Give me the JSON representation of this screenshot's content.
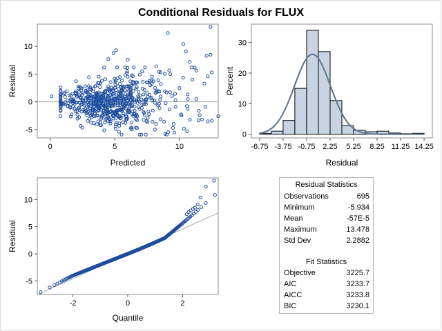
{
  "title": "Conditional Residuals for FLUX",
  "colors": {
    "marker": "#1f4e9e",
    "bar_fill": "#c9d3e3",
    "curve": "#657a94",
    "refline": "#a7a7a7"
  },
  "chart_data": [
    {
      "type": "scatter",
      "xlabel": "Predicted",
      "ylabel": "Residual",
      "xlim": [
        -1,
        13
      ],
      "ylim": [
        -6.5,
        14
      ],
      "xticks": [
        "0",
        "5",
        "10"
      ],
      "yticks": [
        "-5",
        "0",
        "5",
        "10"
      ],
      "reference_line_y": 0,
      "n_points_approx": 695,
      "notable_points": [
        {
          "x": 12.4,
          "y": 13.5
        },
        {
          "x": 9.1,
          "y": 12.4
        },
        {
          "x": 10.3,
          "y": 10.4
        },
        {
          "x": 10.5,
          "y": 9.1
        },
        {
          "x": 12.4,
          "y": 8.5
        },
        {
          "x": 12.1,
          "y": 8.3
        },
        {
          "x": 5.1,
          "y": 9.3
        },
        {
          "x": 4.9,
          "y": 8.8
        },
        {
          "x": 4.5,
          "y": 7.7
        },
        {
          "x": 6.0,
          "y": 7.6
        },
        {
          "x": 10.8,
          "y": 7.2
        },
        {
          "x": 12.5,
          "y": 5.3
        },
        {
          "x": 12.2,
          "y": 4.6
        },
        {
          "x": 8.2,
          "y": 6.4
        },
        {
          "x": 11.0,
          "y": 4.0
        },
        {
          "x": 13.0,
          "y": -2.6
        },
        {
          "x": 12.5,
          "y": -3.4
        },
        {
          "x": 8.9,
          "y": -5.8
        },
        {
          "x": 7.4,
          "y": -5.9
        },
        {
          "x": 0.1,
          "y": 1.0
        },
        {
          "x": 9.5,
          "y": -4.7
        },
        {
          "x": 12.2,
          "y": -3.5
        },
        {
          "x": 8.1,
          "y": -5.0
        },
        {
          "x": 11.5,
          "y": -1.6
        },
        {
          "x": 12.0,
          "y": -0.9
        },
        {
          "x": 11.3,
          "y": 0.5
        },
        {
          "x": 10.0,
          "y": 2.5
        },
        {
          "x": 9.0,
          "y": 1.7
        }
      ]
    },
    {
      "type": "bar",
      "xlabel": "Residual",
      "ylabel": "Percent",
      "xlim": [
        -6.75,
        14.25
      ],
      "ylim": [
        0,
        35
      ],
      "xticks": [
        "-6.75",
        "-3.75",
        "-0.75",
        "2.25",
        "5.25",
        "8.25",
        "11.25",
        "14.25"
      ],
      "yticks": [
        "0",
        "10",
        "20",
        "30"
      ],
      "bin_edges": [
        -6.75,
        -5.25,
        -3.75,
        -2.25,
        -0.75,
        0.75,
        2.25,
        3.75,
        5.25,
        6.75,
        8.25,
        9.75,
        11.25,
        12.75,
        14.25
      ],
      "values": [
        0.3,
        1.0,
        4.5,
        15.0,
        34.0,
        27.0,
        11.0,
        2.8,
        1.3,
        0.8,
        1.0,
        0.4,
        0.2,
        0.3
      ],
      "normal_curve": {
        "mean": 0.0,
        "sd": 2.2882
      }
    },
    {
      "type": "scatter",
      "xlabel": "Quantile",
      "ylabel": "Residual",
      "xlim": [
        -3.3,
        3.3
      ],
      "ylim": [
        -7.5,
        14
      ],
      "xticks": [
        "-2",
        "0",
        "2"
      ],
      "yticks": [
        "-5",
        "0",
        "5",
        "10"
      ],
      "reference_line": {
        "intercept": 0,
        "slope": 2.2882
      },
      "n_points_approx": 695,
      "upper_tail": [
        {
          "x": 3.15,
          "y": 13.5
        },
        {
          "x": 2.85,
          "y": 12.4
        },
        {
          "x": 2.65,
          "y": 10.4
        },
        {
          "x": 2.55,
          "y": 9.1
        },
        {
          "x": 2.45,
          "y": 8.5
        },
        {
          "x": 2.38,
          "y": 8.3
        },
        {
          "x": 2.3,
          "y": 8.0
        },
        {
          "x": 2.22,
          "y": 7.7
        },
        {
          "x": 2.15,
          "y": 7.3
        }
      ]
    },
    {
      "type": "table",
      "sections": [
        {
          "heading": "Residual Statistics",
          "rows": [
            {
              "label": "Observations",
              "value": "695"
            },
            {
              "label": "Minimum",
              "value": "-5.934"
            },
            {
              "label": "Mean",
              "value": "-57E-5"
            },
            {
              "label": "Maximum",
              "value": "13.478"
            },
            {
              "label": "Std Dev",
              "value": "2.2882"
            }
          ]
        },
        {
          "heading": "Fit Statistics",
          "rows": [
            {
              "label": "Objective",
              "value": "3225.7"
            },
            {
              "label": "AIC",
              "value": "3233.7"
            },
            {
              "label": "AICC",
              "value": "3233.8"
            },
            {
              "label": "BIC",
              "value": "3230.1"
            }
          ]
        }
      ]
    }
  ]
}
